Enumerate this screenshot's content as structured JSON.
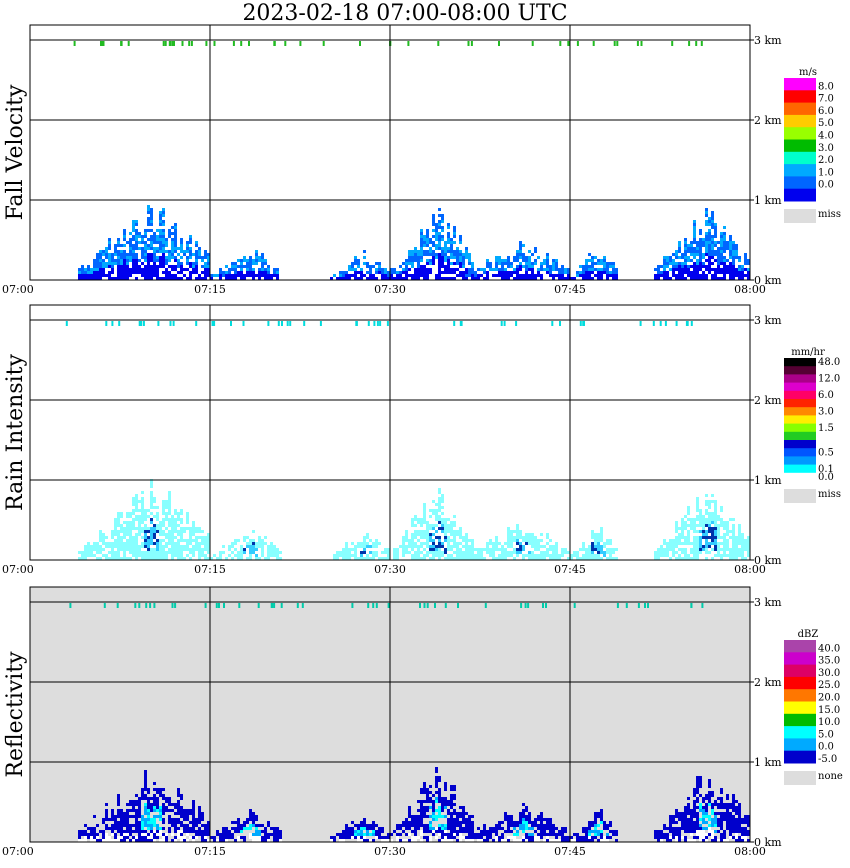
{
  "title": "2023-02-18   07:00-08:00 UTC",
  "x_ticks": [
    "07:00",
    "07:15",
    "07:30",
    "07:45",
    "08:00"
  ],
  "y_ticks": [
    "0 km",
    "1 km",
    "2 km",
    "3 km"
  ],
  "panels": [
    {
      "id": "fall-velocity",
      "label": "Fall Velocity",
      "unit": "m/s",
      "background": "#ffffff",
      "colorbar": [
        {
          "label": "8.0",
          "color": "#ff00ff"
        },
        {
          "label": "7.0",
          "color": "#ff0000"
        },
        {
          "label": "6.0",
          "color": "#ff6600"
        },
        {
          "label": "5.0",
          "color": "#ffcc00"
        },
        {
          "label": "4.0",
          "color": "#99ff00"
        },
        {
          "label": "3.0",
          "color": "#00bb00"
        },
        {
          "label": "2.0",
          "color": "#00ffcc"
        },
        {
          "label": "1.0",
          "color": "#00aaff"
        },
        {
          "label": "0.0",
          "color": "#0066ff"
        },
        {
          "label": "",
          "color": "#0000ee"
        }
      ],
      "missing_label": "miss",
      "missing_color": "#dddddd",
      "top_marker_color": "#22bb22",
      "echo_colors": [
        "#0000ee",
        "#0066ff",
        "#00aaff"
      ]
    },
    {
      "id": "rain-intensity",
      "label": "Rain Intensity",
      "unit": "mm/hr",
      "background": "#ffffff",
      "colorbar": [
        {
          "label": "48.0",
          "color": "#000000"
        },
        {
          "label": "",
          "color": "#550033"
        },
        {
          "label": "12.0",
          "color": "#aa0088"
        },
        {
          "label": "",
          "color": "#dd00cc"
        },
        {
          "label": "6.0",
          "color": "#ff0066"
        },
        {
          "label": "",
          "color": "#ff2200"
        },
        {
          "label": "3.0",
          "color": "#ff8800"
        },
        {
          "label": "",
          "color": "#ffee00"
        },
        {
          "label": "1.5",
          "color": "#88ff00"
        },
        {
          "label": "",
          "color": "#22cc22"
        },
        {
          "label": "",
          "color": "#0000cc"
        },
        {
          "label": "0.5",
          "color": "#0055ff"
        },
        {
          "label": "",
          "color": "#0099ff"
        },
        {
          "label": "0.1",
          "color": "#00ffff"
        },
        {
          "label": "0.0",
          "color": "#ffffff"
        }
      ],
      "missing_label": "miss",
      "missing_color": "#dddddd",
      "top_marker_color": "#00dddd",
      "echo_colors": [
        "#88ffff",
        "#33ccff",
        "#0033aa"
      ]
    },
    {
      "id": "reflectivity",
      "label": "Reflectivity",
      "unit": "dBZ",
      "background": "#dddddd",
      "colorbar": [
        {
          "label": "40.0",
          "color": "#aa44aa"
        },
        {
          "label": "35.0",
          "color": "#cc00cc"
        },
        {
          "label": "30.0",
          "color": "#dd0066"
        },
        {
          "label": "25.0",
          "color": "#ff0000"
        },
        {
          "label": "20.0",
          "color": "#ff7700"
        },
        {
          "label": "15.0",
          "color": "#ffff00"
        },
        {
          "label": "10.0",
          "color": "#00bb00"
        },
        {
          "label": "5.0",
          "color": "#00ffff"
        },
        {
          "label": "0.0",
          "color": "#00aaff"
        },
        {
          "label": "-5.0",
          "color": "#0000cc"
        }
      ],
      "missing_label": "none",
      "missing_color": "#dddddd",
      "top_marker_color": "#00ccaa",
      "echo_colors": [
        "#ffffff",
        "#0000cc",
        "#00aaff",
        "#00ffff"
      ]
    }
  ],
  "chart_data": {
    "type": "heatmap",
    "title": "2023-02-18   07:00-08:00 UTC",
    "x_range": [
      "07:00",
      "08:00"
    ],
    "y_range_km": [
      0,
      3.2
    ],
    "grid": true,
    "echo_clusters": [
      {
        "t_start": "07:04",
        "t_end": "07:15",
        "peak_top_km": 1.05
      },
      {
        "t_start": "07:15",
        "t_end": "07:21",
        "peak_top_km": 0.45
      },
      {
        "t_start": "07:25",
        "t_end": "07:30",
        "peak_top_km": 0.4
      },
      {
        "t_start": "07:30",
        "t_end": "07:37",
        "peak_top_km": 1.0
      },
      {
        "t_start": "07:36",
        "t_end": "07:45",
        "peak_top_km": 0.5
      },
      {
        "t_start": "07:45",
        "t_end": "07:49",
        "peak_top_km": 0.45
      },
      {
        "t_start": "07:52",
        "t_end": "08:00",
        "peak_top_km": 1.0
      }
    ],
    "upper_echoes_km": 3.0
  }
}
